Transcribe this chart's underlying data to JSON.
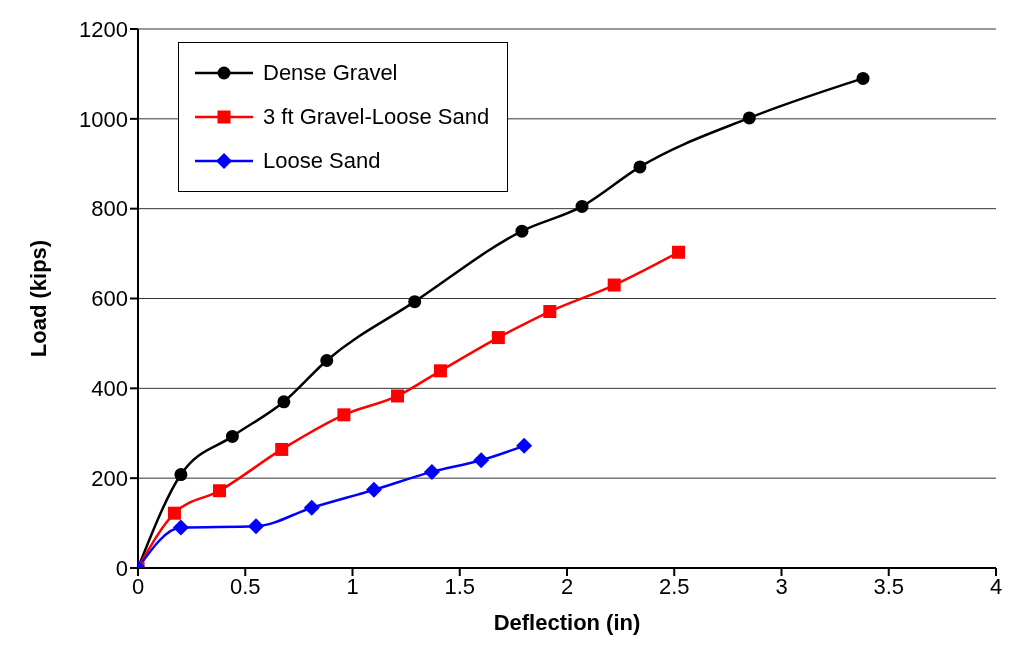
{
  "chart_data": {
    "type": "line",
    "xlabel": "Deflection (in)",
    "ylabel": "Load (kips)",
    "xlim": [
      0,
      4
    ],
    "xticks": [
      0,
      0.5,
      1,
      1.5,
      2,
      2.5,
      3,
      3.5,
      4
    ],
    "ylim": [
      0,
      1200
    ],
    "yticks": [
      0,
      200,
      400,
      600,
      800,
      1000,
      1200
    ],
    "grid": "y",
    "legend": "top left",
    "line_style": "solid",
    "series": [
      {
        "name": "Dense Gravel",
        "color": "#000000",
        "marker": "circle",
        "x": [
          0,
          0.2,
          0.44,
          0.68,
          0.88,
          1.29,
          1.79,
          2.07,
          2.34,
          2.85,
          3.38
        ],
        "values": [
          0,
          208,
          293,
          370,
          462,
          593,
          750,
          805,
          893,
          1002,
          1090
        ]
      },
      {
        "name": "3 ft Gravel-Loose Sand",
        "color": "#ff0000",
        "marker": "square",
        "x": [
          0,
          0.17,
          0.38,
          0.67,
          0.96,
          1.21,
          1.41,
          1.68,
          1.92,
          2.22,
          2.52
        ],
        "values": [
          0,
          122,
          172,
          264,
          341,
          383,
          439,
          513,
          571,
          630,
          703
        ]
      },
      {
        "name": "Loose Sand",
        "color": "#0000ff",
        "marker": "diamond",
        "x": [
          0,
          0.2,
          0.55,
          0.81,
          1.1,
          1.37,
          1.6,
          1.8
        ],
        "values": [
          0,
          90,
          93,
          134,
          174,
          214,
          240,
          272
        ]
      }
    ]
  }
}
